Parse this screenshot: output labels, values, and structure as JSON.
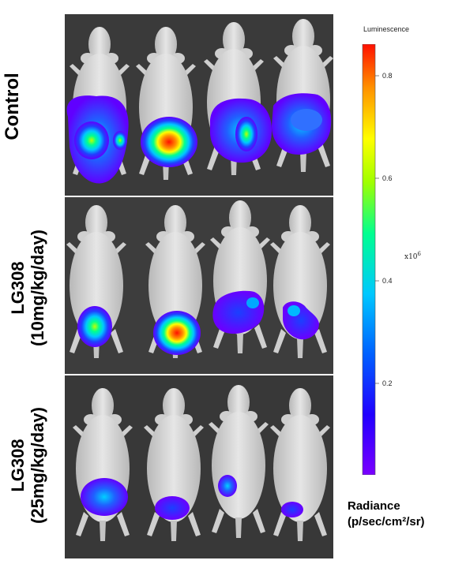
{
  "groups": [
    {
      "line1": "Control",
      "line2": ""
    },
    {
      "line1": "LG308",
      "line2": "(10mg/kg/day)"
    },
    {
      "line1": "LG308",
      "line2": "(25mg/kg/day)"
    }
  ],
  "legend": {
    "title": "Luminescence",
    "exponent": "x10",
    "exponent_power": "6",
    "ticks": [
      "0.8",
      "0.6",
      "0.4",
      "0.2"
    ],
    "units_line1": "Radiance",
    "units_line2": "(p/sec/cm²/sr)",
    "colorscale": [
      "#7a00ff",
      "#2000ff",
      "#0060ff",
      "#00c8ff",
      "#00ff90",
      "#a0ff00",
      "#ffff00",
      "#ff9000",
      "#ff1000"
    ]
  },
  "colors": {
    "panel_bg": "#3a3a3a",
    "mouse": "#d8d8d8"
  }
}
